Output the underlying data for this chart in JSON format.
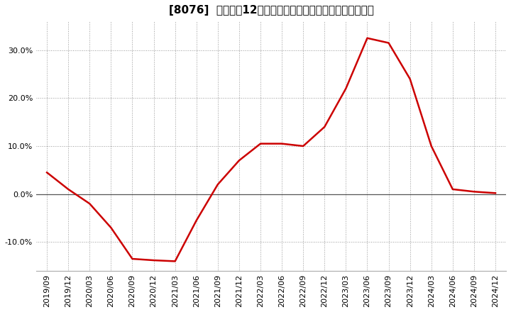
{
  "title": "[8076]  売上高の12か月移動合計の対前年同期増減率の推移",
  "line_color": "#cc0000",
  "bg_color": "#ffffff",
  "plot_bg_color": "#ffffff",
  "grid_color": "#999999",
  "spine_color": "#aaaaaa",
  "x_labels": [
    "2019/09",
    "2019/12",
    "2020/03",
    "2020/06",
    "2020/09",
    "2020/12",
    "2021/03",
    "2021/06",
    "2021/09",
    "2021/12",
    "2022/03",
    "2022/06",
    "2022/09",
    "2022/12",
    "2023/03",
    "2023/06",
    "2023/09",
    "2023/12",
    "2024/03",
    "2024/06",
    "2024/09",
    "2024/12"
  ],
  "y_values": [
    4.5,
    1.0,
    -2.0,
    -7.0,
    -13.5,
    -13.8,
    -14.0,
    -5.5,
    2.0,
    7.0,
    10.5,
    10.5,
    10.0,
    14.0,
    22.0,
    32.5,
    31.5,
    24.0,
    10.0,
    1.0,
    0.5,
    0.2
  ],
  "ylim": [
    -16,
    36
  ],
  "yticks": [
    -10.0,
    0.0,
    10.0,
    20.0,
    30.0
  ],
  "title_fontsize": 11,
  "tick_fontsize": 8,
  "line_width": 1.8,
  "figsize": [
    7.2,
    4.4
  ],
  "dpi": 100
}
